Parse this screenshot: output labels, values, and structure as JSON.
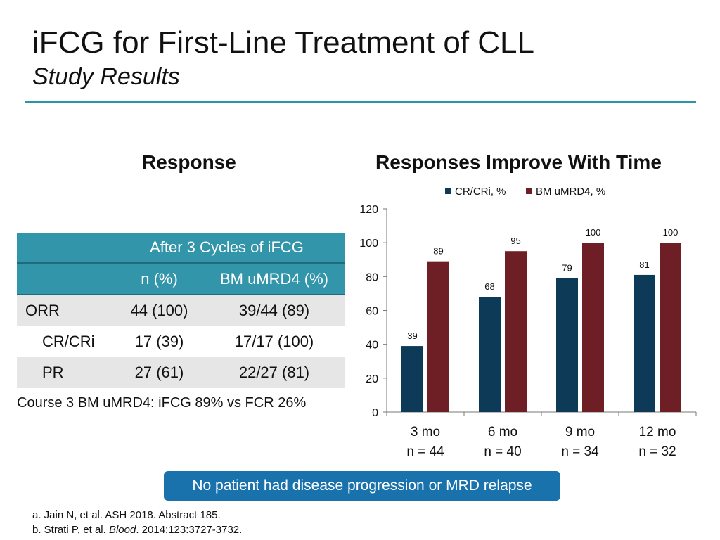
{
  "slide": {
    "title": "iFCG for First-Line Treatment of CLL",
    "subtitle": "Study Results"
  },
  "response_section": {
    "heading": "Response",
    "table": {
      "group_header": "After 3 Cycles of iFCG",
      "columns": [
        "",
        "n (%)",
        "BM uMRD4 (%)"
      ],
      "rows": [
        {
          "label": "ORR",
          "n": "44 (100)",
          "mrd": "39/44 (89)"
        },
        {
          "label": "CR/CRi",
          "n": "17 (39)",
          "mrd": "17/17 (100)"
        },
        {
          "label": "PR",
          "n": "27 (61)",
          "mrd": "22/27 (81)"
        }
      ]
    },
    "note": "Course 3 BM uMRD4: iFCG 89% vs FCR 26%"
  },
  "chart_section": {
    "heading": "Responses Improve With Time"
  },
  "chart_data": {
    "type": "bar",
    "categories": [
      "3 mo",
      "6 mo",
      "9 mo",
      "12 mo"
    ],
    "category_sublabels": [
      "n = 44",
      "n = 40",
      "n = 34",
      "n = 32"
    ],
    "series": [
      {
        "name": "CR/CRi, %",
        "values": [
          39,
          68,
          79,
          81
        ],
        "color": "#0d3b57"
      },
      {
        "name": "BM uMRD4, %",
        "values": [
          89,
          95,
          100,
          100
        ],
        "color": "#6e1f26"
      }
    ],
    "ylim": [
      0,
      120
    ],
    "yticks": [
      0,
      20,
      40,
      60,
      80,
      100,
      120
    ],
    "grid": false,
    "legend": "top-center",
    "data_labels": true
  },
  "banner": {
    "text": "No patient had disease progression or MRD relapse",
    "color": "#1a72ad"
  },
  "references": {
    "ref_a": "a. Jain N, et al. ASH 2018. Abstract 185.",
    "ref_b_prefix": "b. Strati P, et al. ",
    "ref_b_journal": "Blood",
    "ref_b_suffix": ". 2014;123:3727-3732."
  },
  "colors": {
    "accent": "#2e93a8",
    "table_header": "#3295aa",
    "row_shade": "#e6e6e6"
  }
}
